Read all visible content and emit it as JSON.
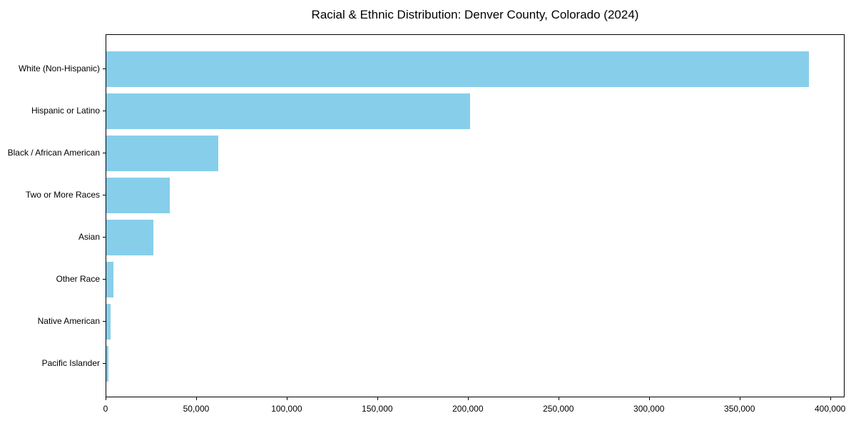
{
  "chart_data": {
    "type": "bar",
    "orientation": "horizontal",
    "title": "Racial & Ethnic Distribution: Denver County, Colorado (2024)",
    "categories": [
      "White (Non-Hispanic)",
      "Hispanic or Latino",
      "Black / African American",
      "Two or More Races",
      "Asian",
      "Other Race",
      "Native American",
      "Pacific Islander"
    ],
    "values": [
      388000,
      201000,
      62000,
      35000,
      26000,
      4000,
      2500,
      1000
    ],
    "xlabel": "",
    "ylabel": "",
    "xlim": [
      0,
      408000
    ],
    "x_ticks": [
      {
        "value": 0,
        "label": "0"
      },
      {
        "value": 50000,
        "label": "50,000"
      },
      {
        "value": 100000,
        "label": "100,000"
      },
      {
        "value": 150000,
        "label": "150,000"
      },
      {
        "value": 200000,
        "label": "200,000"
      },
      {
        "value": 250000,
        "label": "250,000"
      },
      {
        "value": 300000,
        "label": "300,000"
      },
      {
        "value": 350000,
        "label": "350,000"
      },
      {
        "value": 400000,
        "label": "400,000"
      }
    ],
    "bar_color": "#87CEEB",
    "spine_color": "#000000",
    "grid": false,
    "legend": null
  }
}
